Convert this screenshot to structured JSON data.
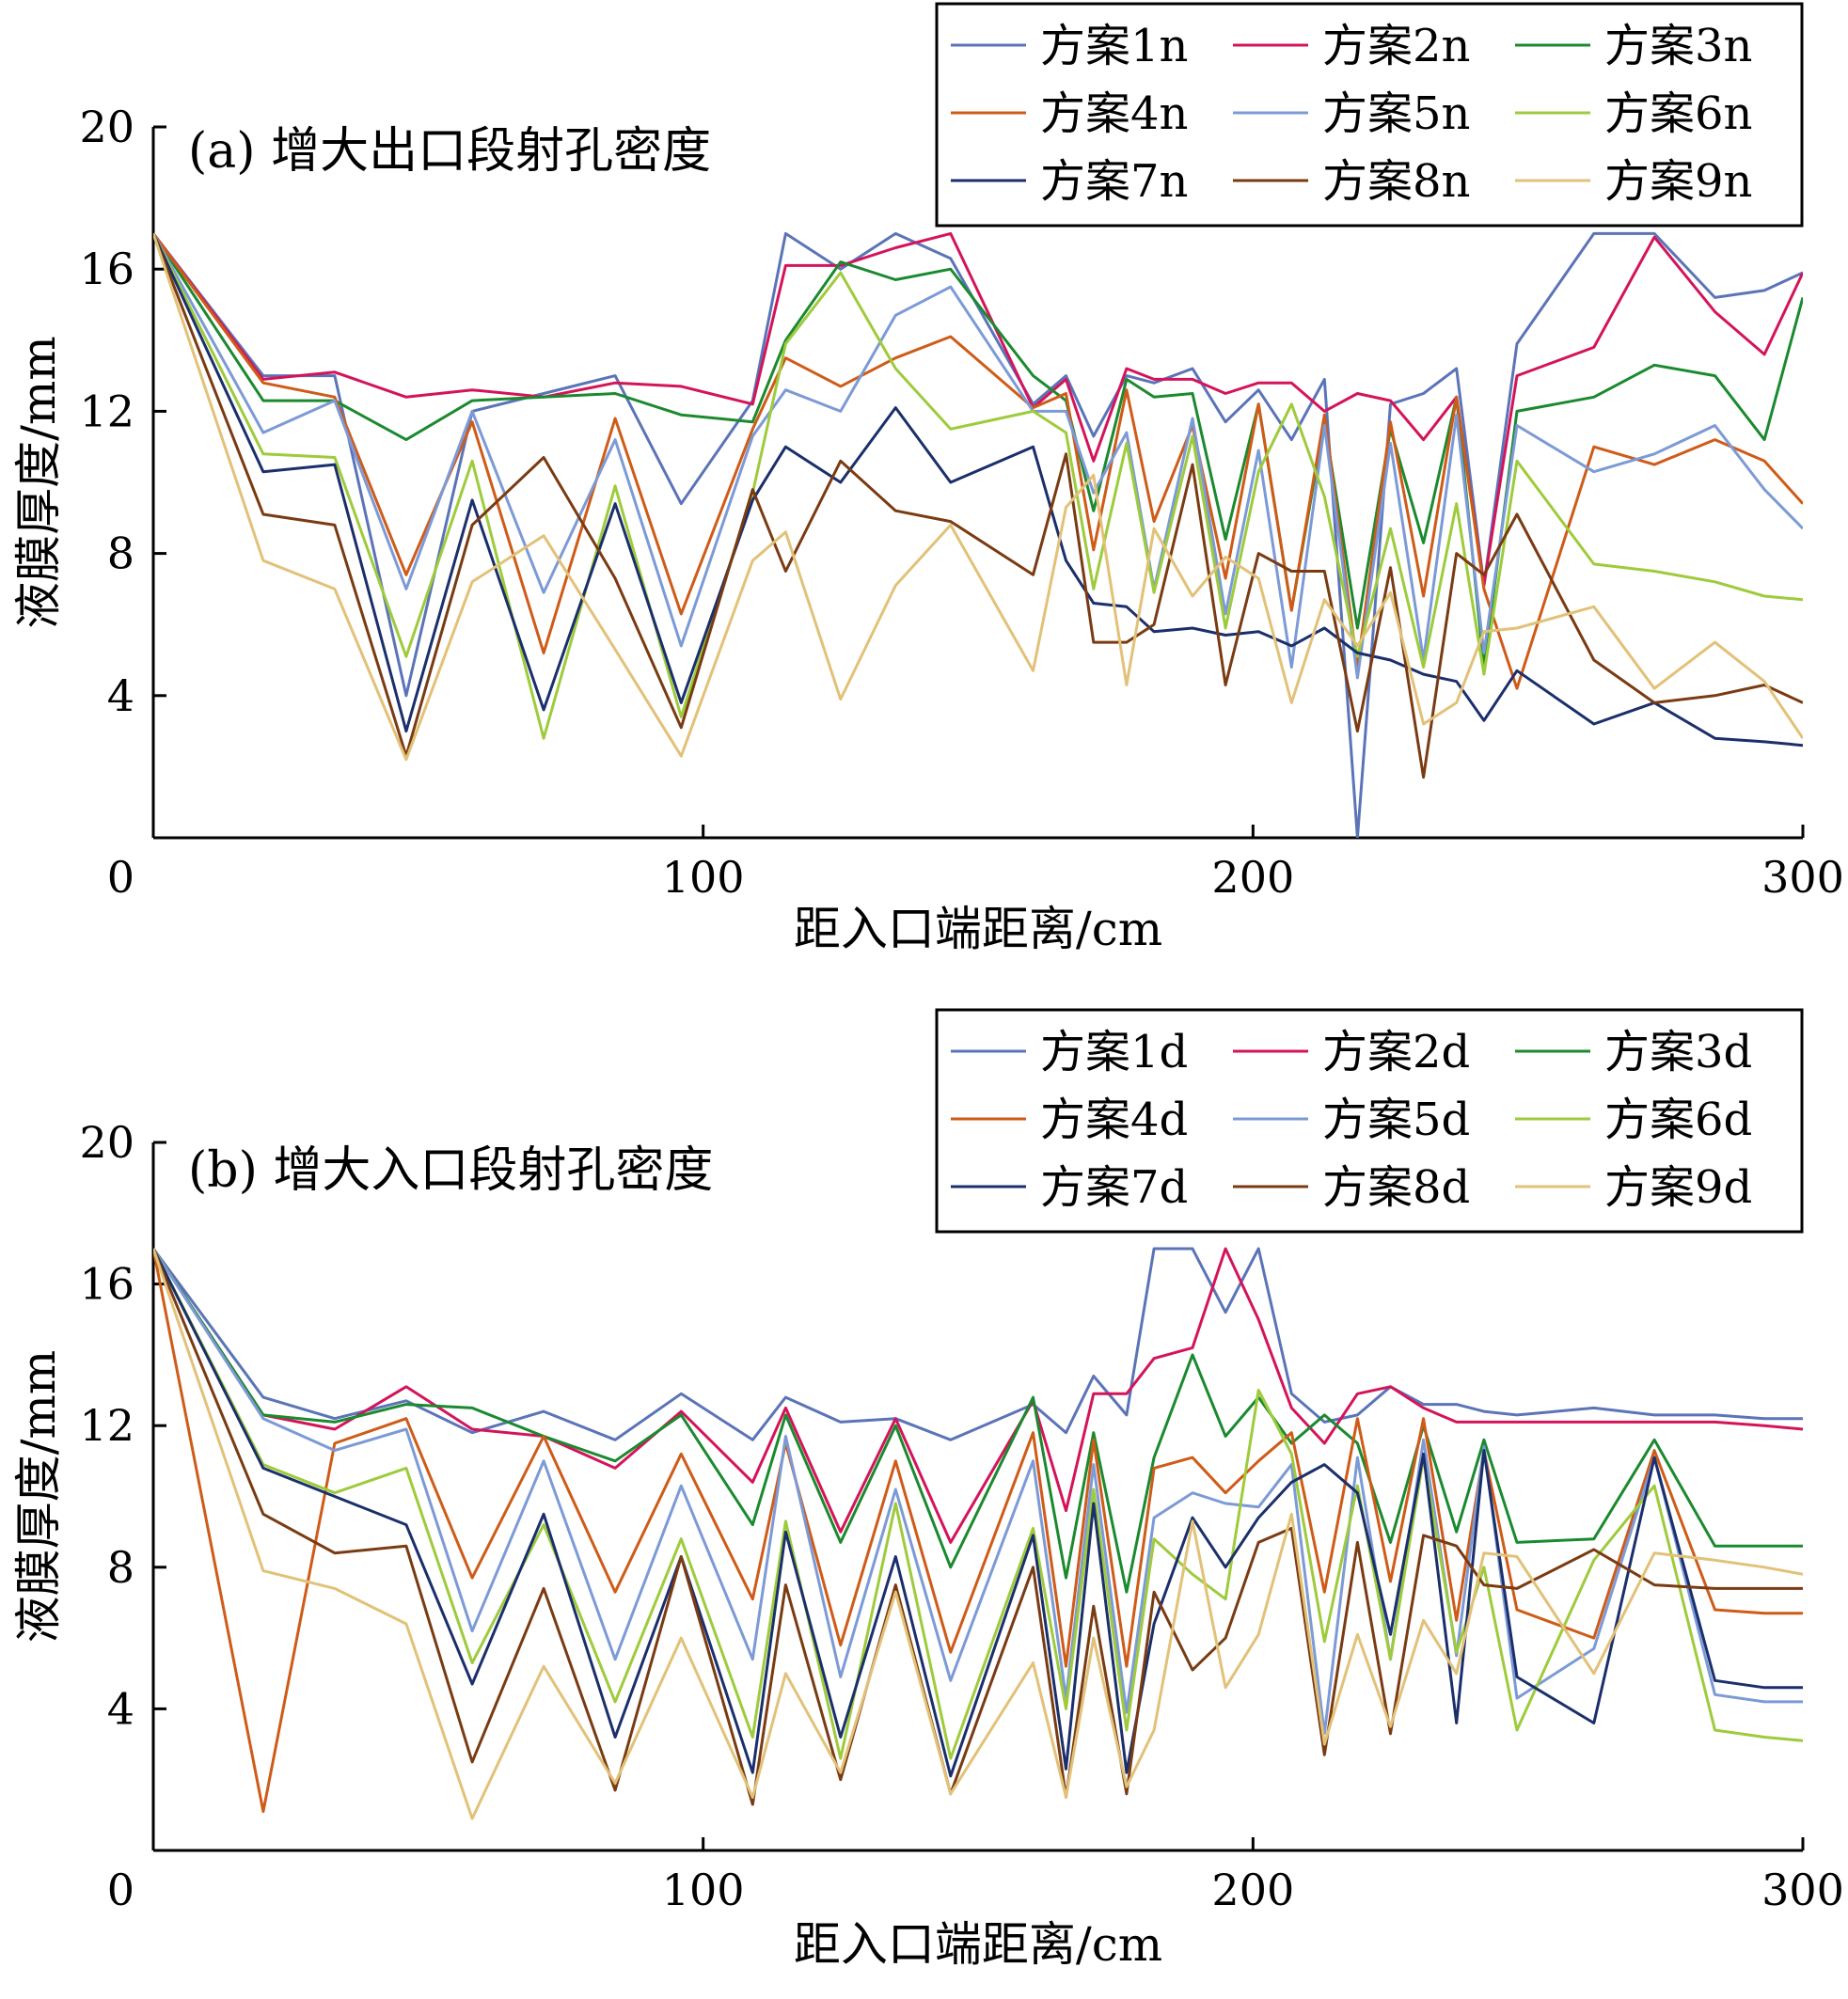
{
  "chart_data": [
    {
      "type": "line",
      "title": "(a) 增大出口段射孔密度",
      "xlabel": "距入口端距离/cm",
      "ylabel": "液膜厚度/mm",
      "xlim": [
        0,
        300
      ],
      "ylim": [
        0,
        20
      ],
      "xticks": [
        "0",
        "100",
        "200",
        "300"
      ],
      "yticks": [
        "4",
        "8",
        "12",
        "16",
        "20"
      ],
      "grid": false,
      "legend_position": "top-right",
      "x": [
        0,
        20,
        33,
        46,
        58,
        71,
        84,
        96,
        109,
        115,
        125,
        135,
        145,
        160,
        166,
        171,
        177,
        182,
        189,
        195,
        201,
        207,
        213,
        219,
        225,
        231,
        237,
        242,
        248,
        262,
        273,
        284,
        293,
        300
      ],
      "series": [
        {
          "name": "方案1n",
          "color": "#5b74b8",
          "values": [
            17,
            13,
            13,
            4,
            12,
            12.5,
            13,
            9.4,
            12.3,
            17,
            16,
            17,
            16.3,
            12.2,
            13,
            11.3,
            13,
            12.8,
            13.2,
            11.7,
            12.6,
            11.2,
            12.9,
            0,
            12.2,
            12.5,
            13.2,
            7.1,
            13.9,
            17,
            17,
            15.2,
            15.4,
            15.9
          ]
        },
        {
          "name": "方案2n",
          "color": "#d4145a",
          "values": [
            17,
            12.9,
            13.1,
            12.4,
            12.6,
            12.4,
            12.8,
            12.7,
            12.2,
            16.1,
            16.1,
            16.6,
            17,
            12.1,
            12.9,
            10.6,
            13.2,
            12.9,
            12.9,
            12.5,
            12.8,
            12.8,
            12,
            12.5,
            12.3,
            11.2,
            12.4,
            7.1,
            13,
            13.8,
            16.9,
            14.8,
            13.6,
            15.9
          ]
        },
        {
          "name": "方案3n",
          "color": "#1b8a2f",
          "values": [
            17,
            12.3,
            12.3,
            11.2,
            12.3,
            12.4,
            12.5,
            11.9,
            11.7,
            14,
            16.2,
            15.7,
            16,
            13,
            12.3,
            9.2,
            12.9,
            12.4,
            12.5,
            8.4,
            12.2,
            6.4,
            11.7,
            5.9,
            11.5,
            8.3,
            12.4,
            4.8,
            12,
            12.4,
            13.3,
            13,
            11.2,
            15.2
          ]
        },
        {
          "name": "方案4n",
          "color": "#cf5b18",
          "values": [
            17,
            12.8,
            12.4,
            7.4,
            11.7,
            5.2,
            11.8,
            6.3,
            11.5,
            13.5,
            12.7,
            13.5,
            14.1,
            12.1,
            12.5,
            8.1,
            12.6,
            8.9,
            11.6,
            7.3,
            12.2,
            6.4,
            11.9,
            4.8,
            11.7,
            6.8,
            12.4,
            7,
            4.2,
            11,
            10.5,
            11.2,
            10.6,
            9.4
          ]
        },
        {
          "name": "方案5n",
          "color": "#7c9ad6",
          "values": [
            17,
            11.4,
            12.3,
            7,
            12,
            6.9,
            11.2,
            5.4,
            11.3,
            12.6,
            12,
            14.7,
            15.5,
            12,
            12,
            9.7,
            11.4,
            7,
            11.8,
            6.3,
            10.9,
            4.8,
            11.6,
            4.5,
            11.1,
            5,
            11.9,
            5.2,
            11.6,
            10.3,
            10.8,
            11.6,
            9.8,
            8.7
          ]
        },
        {
          "name": "方案6n",
          "color": "#9ecb3c",
          "values": [
            17,
            10.8,
            10.7,
            5.1,
            10.6,
            2.8,
            9.9,
            3.4,
            9.7,
            13.9,
            15.9,
            13.2,
            11.5,
            12,
            11.4,
            7,
            11.1,
            6.9,
            11.3,
            5.9,
            10.3,
            12.2,
            9.6,
            5.1,
            8.7,
            4.8,
            9.4,
            4.6,
            10.6,
            7.7,
            7.5,
            7.2,
            6.8,
            6.7
          ]
        },
        {
          "name": "方案7n",
          "color": "#1a2f6b",
          "values": [
            17,
            10.3,
            10.5,
            3,
            9.5,
            3.6,
            9.4,
            3.8,
            9.5,
            11,
            10,
            12.1,
            10,
            11,
            7.8,
            6.6,
            6.5,
            5.8,
            5.9,
            5.7,
            5.8,
            5.4,
            5.9,
            5.2,
            5,
            4.6,
            4.4,
            3.3,
            4.7,
            3.2,
            3.8,
            2.8,
            2.7,
            2.6
          ]
        },
        {
          "name": "方案8n",
          "color": "#7a3b12",
          "values": [
            17,
            9.1,
            8.8,
            2.3,
            8.8,
            10.7,
            7.3,
            3.1,
            9.8,
            7.5,
            10.6,
            9.2,
            8.9,
            7.4,
            10.8,
            5.5,
            5.5,
            6,
            10.5,
            4.3,
            8,
            7.5,
            7.5,
            3,
            7.6,
            1.7,
            8,
            7.4,
            9.1,
            5,
            3.8,
            4,
            4.3,
            3.8
          ]
        },
        {
          "name": "方案9n",
          "color": "#e2c178",
          "values": [
            17,
            7.8,
            7,
            2.2,
            7.2,
            8.5,
            5.3,
            2.3,
            7.8,
            8.6,
            3.9,
            7.1,
            8.8,
            4.7,
            9.3,
            10.2,
            4.3,
            8.7,
            6.8,
            7.9,
            7.3,
            3.8,
            6.7,
            5.4,
            6.9,
            3.2,
            3.8,
            5.8,
            5.9,
            6.5,
            4.2,
            5.5,
            4.4,
            2.8
          ]
        }
      ]
    },
    {
      "type": "line",
      "title": "(b) 增大入口段射孔密度",
      "xlabel": "距入口端距离/cm",
      "ylabel": "液膜厚度/mm",
      "xlim": [
        0,
        300
      ],
      "ylim": [
        0,
        20
      ],
      "xticks": [
        "0",
        "100",
        "200",
        "300"
      ],
      "yticks": [
        "4",
        "8",
        "12",
        "16",
        "20"
      ],
      "grid": false,
      "legend_position": "top-right",
      "x": [
        0,
        20,
        33,
        46,
        58,
        71,
        84,
        96,
        109,
        115,
        125,
        135,
        145,
        160,
        166,
        171,
        177,
        182,
        189,
        195,
        201,
        207,
        213,
        219,
        225,
        231,
        237,
        242,
        248,
        262,
        273,
        284,
        293,
        300
      ],
      "series": [
        {
          "name": "方案1d",
          "color": "#5b74b8",
          "values": [
            17,
            12.8,
            12.2,
            12.7,
            11.8,
            12.4,
            11.6,
            12.9,
            11.6,
            12.8,
            12.1,
            12.2,
            11.6,
            12.6,
            11.8,
            13.4,
            12.3,
            17,
            17,
            15.2,
            17,
            12.9,
            12.1,
            12.3,
            13.1,
            12.6,
            12.6,
            12.4,
            12.3,
            12.5,
            12.3,
            12.3,
            12.2,
            12.2
          ]
        },
        {
          "name": "方案2d",
          "color": "#d4145a",
          "values": [
            17,
            12.3,
            11.9,
            13.1,
            11.9,
            11.7,
            10.8,
            12.4,
            10.4,
            12.5,
            9,
            12.2,
            8.7,
            12.7,
            9.6,
            12.9,
            12.9,
            13.9,
            14.2,
            17,
            15,
            12.5,
            11.5,
            12.9,
            13.1,
            12.5,
            12.1,
            12.1,
            12.1,
            12.1,
            12.1,
            12.1,
            12,
            11.9
          ]
        },
        {
          "name": "方案3d",
          "color": "#1b8a2f",
          "values": [
            17,
            12.3,
            12.1,
            12.6,
            12.5,
            11.7,
            11,
            12.3,
            9.2,
            12.3,
            8.7,
            12,
            8,
            12.8,
            7.7,
            11.8,
            7.3,
            11.1,
            14,
            11.7,
            12.8,
            11.5,
            12.3,
            11.5,
            8.7,
            12,
            9,
            11.6,
            8.7,
            8.8,
            11.6,
            8.6,
            8.6,
            8.6
          ]
        },
        {
          "name": "方案4d",
          "color": "#cf5b18",
          "values": [
            17,
            1.1,
            11.5,
            12.2,
            7.7,
            11.7,
            7.3,
            11.2,
            7.1,
            11.5,
            5.8,
            11,
            5.6,
            11.8,
            5.2,
            11.6,
            5.2,
            10.8,
            11.1,
            10.1,
            11,
            11.8,
            7.3,
            12.2,
            7.6,
            12.2,
            6.5,
            11.3,
            6.8,
            6,
            11.3,
            6.8,
            6.7,
            6.7
          ]
        },
        {
          "name": "方案5d",
          "color": "#7c9ad6",
          "values": [
            17,
            12.2,
            11.3,
            11.9,
            6.2,
            11,
            5.4,
            10.3,
            5.4,
            11.7,
            4.9,
            10.2,
            4.8,
            11,
            4.3,
            10.9,
            3.9,
            9.4,
            10.1,
            9.8,
            9.7,
            10.9,
            3.3,
            11.1,
            5.4,
            11.6,
            5.5,
            11.4,
            4.3,
            5.7,
            11.1,
            4.4,
            4.2,
            4.2
          ]
        },
        {
          "name": "方案6d",
          "color": "#9ecb3c",
          "values": [
            17,
            10.9,
            10.1,
            10.8,
            5.3,
            9.2,
            4.2,
            8.8,
            3.2,
            9.3,
            2.6,
            9.8,
            2.6,
            9.1,
            4,
            10.2,
            3.4,
            8.8,
            7.8,
            7.1,
            13,
            11.2,
            5.9,
            10.3,
            5.4,
            11.1,
            5.6,
            8,
            3.4,
            8.2,
            10.3,
            3.4,
            3.2,
            3.1
          ]
        },
        {
          "name": "方案7d",
          "color": "#1a2f6b",
          "values": [
            17,
            10.8,
            10,
            9.2,
            4.7,
            9.5,
            3.2,
            8.3,
            2.2,
            9,
            3.2,
            8.3,
            2.1,
            8.9,
            2.3,
            9.8,
            2.2,
            6.4,
            9.4,
            8,
            9.4,
            10.4,
            10.9,
            10.1,
            6.1,
            11.2,
            3.6,
            11.3,
            4.9,
            3.6,
            11.1,
            4.8,
            4.6,
            4.6
          ]
        },
        {
          "name": "方案8d",
          "color": "#7a3b12",
          "values": [
            17,
            9.5,
            8.4,
            8.6,
            2.5,
            7.4,
            1.7,
            8.3,
            1.3,
            7.5,
            2,
            7.5,
            1.6,
            8,
            1.5,
            6.9,
            1.6,
            7.3,
            5.1,
            6,
            8.7,
            9.1,
            2.7,
            8.7,
            3.3,
            8.9,
            8.6,
            7.5,
            7.4,
            8.5,
            7.5,
            7.4,
            7.4,
            7.4
          ]
        },
        {
          "name": "方案9d",
          "color": "#e2c178",
          "values": [
            17,
            7.9,
            7.4,
            6.4,
            0.9,
            5.2,
            1.9,
            6,
            1.5,
            5,
            2.2,
            7.3,
            1.6,
            5.3,
            1.5,
            6,
            1.8,
            3.4,
            9.3,
            4.6,
            6.1,
            9.5,
            3,
            6.1,
            3.5,
            6.5,
            5,
            8.4,
            8.3,
            5,
            8.4,
            8.2,
            8,
            7.8
          ]
        }
      ]
    }
  ]
}
